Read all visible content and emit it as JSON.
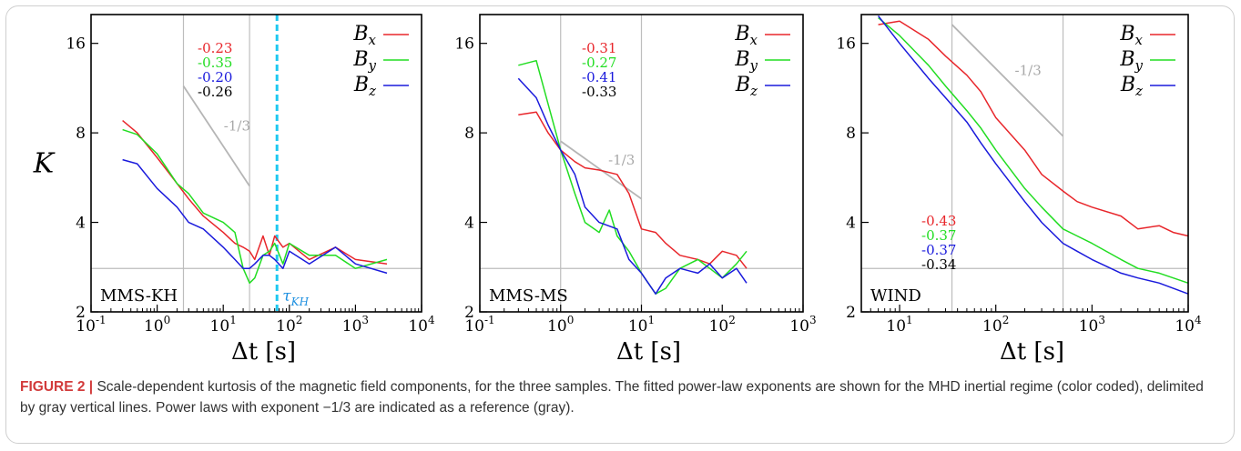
{
  "caption": {
    "label": "FIGURE 2 |",
    "text": "Scale-dependent kurtosis of the magnetic field components, for the three samples. The fitted power-law exponents are shown for the MHD inertial regime (color coded), delimited by gray vertical lines. Power laws with exponent −1/3 are indicated as a reference (gray)."
  },
  "colors": {
    "Bx": "#e8262b",
    "By": "#22dd22",
    "Bz": "#1a1adc",
    "avg": "#000000",
    "reference": "#b8b8b8",
    "tau": "#1ec8f0",
    "tau_label": "#1e90e0"
  },
  "chart_data": [
    {
      "type": "line",
      "panel": "MMS-KH",
      "sample_label": "MMS-KH",
      "xlabel": "Δt [s]",
      "ylabel": "K",
      "xscale": "log",
      "yscale": "log",
      "xlim": [
        0.1,
        10000
      ],
      "ylim": [
        2,
        20
      ],
      "xticks": [
        "10^-1",
        "10^0",
        "10^1",
        "10^2",
        "10^3",
        "10^4"
      ],
      "yticks": [
        "2",
        "4",
        "8",
        "16"
      ],
      "legend": {
        "position": "top-right",
        "entries": [
          "B_x",
          "B_y",
          "B_z"
        ]
      },
      "exponents": [
        "-0.23",
        "-0.35",
        "-0.20",
        "-0.26"
      ],
      "reference_slope": "-1/3",
      "reference_segment": [
        [
          2.5,
          11.5
        ],
        [
          25,
          5.3
        ]
      ],
      "vlines": [
        2.5,
        25
      ],
      "hline": 2.8,
      "tau_line": 65,
      "tau_label": "τ_KH",
      "series": [
        {
          "name": "B_x",
          "x": [
            0.3,
            0.5,
            1,
            2,
            3,
            5,
            10,
            15,
            20,
            25,
            30,
            40,
            50,
            60,
            80,
            100,
            200,
            500,
            1000,
            3000
          ],
          "y": [
            8.8,
            8.0,
            6.6,
            5.4,
            4.8,
            4.2,
            3.7,
            3.4,
            3.3,
            3.2,
            3.0,
            3.6,
            3.1,
            3.6,
            3.3,
            3.4,
            3.0,
            3.3,
            3.0,
            2.9
          ]
        },
        {
          "name": "B_y",
          "x": [
            0.3,
            0.5,
            1,
            2,
            3,
            5,
            10,
            15,
            20,
            25,
            30,
            40,
            50,
            60,
            80,
            100,
            200,
            500,
            1000,
            3000
          ],
          "y": [
            8.2,
            7.9,
            6.8,
            5.4,
            5.0,
            4.3,
            4.0,
            3.7,
            2.8,
            2.5,
            2.6,
            3.1,
            3.2,
            3.4,
            2.9,
            3.4,
            3.1,
            3.1,
            2.8,
            3.0
          ]
        },
        {
          "name": "B_z",
          "x": [
            0.3,
            0.5,
            1,
            2,
            3,
            5,
            10,
            15,
            20,
            25,
            30,
            40,
            50,
            60,
            80,
            100,
            200,
            500,
            1000,
            3000
          ],
          "y": [
            6.5,
            6.3,
            5.2,
            4.5,
            4.0,
            3.8,
            3.3,
            3.0,
            2.8,
            2.8,
            2.9,
            3.1,
            3.1,
            3.0,
            2.8,
            3.2,
            2.9,
            3.3,
            2.9,
            2.7
          ]
        }
      ]
    },
    {
      "type": "line",
      "panel": "MMS-MS",
      "sample_label": "MMS-MS",
      "xlabel": "Δt [s]",
      "ylabel": "",
      "xscale": "log",
      "yscale": "log",
      "xlim": [
        0.1,
        1000
      ],
      "ylim": [
        2,
        20
      ],
      "xticks": [
        "10^-1",
        "10^0",
        "10^1",
        "10^2",
        "10^3"
      ],
      "yticks": [
        "2",
        "4",
        "8",
        "16"
      ],
      "legend": {
        "position": "top-right",
        "entries": [
          "B_x",
          "B_y",
          "B_z"
        ]
      },
      "exponents": [
        "-0.31",
        "-0.27",
        "-0.41",
        "-0.33"
      ],
      "reference_slope": "-1/3",
      "reference_segment": [
        [
          1,
          7.5
        ],
        [
          10,
          4.8
        ]
      ],
      "vlines": [
        1,
        10
      ],
      "hline": 2.8,
      "series": [
        {
          "name": "B_x",
          "x": [
            0.3,
            0.5,
            0.7,
            1,
            1.5,
            2,
            3,
            5,
            7,
            10,
            15,
            20,
            30,
            50,
            70,
            100,
            150,
            200
          ],
          "y": [
            9.2,
            9.4,
            8.0,
            7.0,
            6.4,
            6.1,
            6.0,
            5.8,
            5.0,
            3.8,
            3.7,
            3.4,
            3.1,
            3.0,
            2.9,
            3.2,
            3.1,
            2.8
          ]
        },
        {
          "name": "B_y",
          "x": [
            0.3,
            0.5,
            0.7,
            1,
            1.5,
            2,
            3,
            4,
            5,
            7,
            10,
            15,
            20,
            30,
            50,
            70,
            100,
            150,
            200
          ],
          "y": [
            13.5,
            14.0,
            10.0,
            7.0,
            5.0,
            4.0,
            3.7,
            4.4,
            3.6,
            3.2,
            2.7,
            2.3,
            2.4,
            2.8,
            3.0,
            2.8,
            2.6,
            2.9,
            3.2
          ]
        },
        {
          "name": "B_z",
          "x": [
            0.3,
            0.5,
            0.7,
            1,
            1.5,
            2,
            3,
            5,
            7,
            10,
            15,
            20,
            30,
            50,
            70,
            100,
            150,
            200
          ],
          "y": [
            12.2,
            10.5,
            8.5,
            7.0,
            5.8,
            4.5,
            4.0,
            3.8,
            3.0,
            2.7,
            2.3,
            2.6,
            2.8,
            2.7,
            2.9,
            2.6,
            2.8,
            2.5
          ]
        }
      ]
    },
    {
      "type": "line",
      "panel": "WIND",
      "sample_label": "WIND",
      "xlabel": "Δt [s]",
      "ylabel": "",
      "xscale": "log",
      "yscale": "log",
      "xlim": [
        4,
        10000
      ],
      "ylim": [
        2,
        20
      ],
      "xticks": [
        "10^1",
        "10^2",
        "10^3",
        "10^4"
      ],
      "yticks": [
        "2",
        "4",
        "8",
        "16"
      ],
      "legend": {
        "position": "top-right",
        "entries": [
          "B_x",
          "B_y",
          "B_z"
        ]
      },
      "exponents": [
        "-0.43",
        "-0.37",
        "-0.37",
        "-0.34"
      ],
      "reference_slope": "-1/3",
      "reference_segment": [
        [
          35,
          18.5
        ],
        [
          500,
          7.8
        ]
      ],
      "vlines": [
        35,
        500
      ],
      "hline": 2.8,
      "series": [
        {
          "name": "B_x",
          "x": [
            6,
            10,
            20,
            30,
            50,
            70,
            100,
            200,
            300,
            500,
            700,
            1000,
            2000,
            3000,
            5000,
            7000,
            10000
          ],
          "y": [
            18.5,
            19.0,
            16.5,
            14.5,
            12.5,
            11.0,
            9.0,
            7.0,
            5.8,
            5.1,
            4.7,
            4.5,
            4.2,
            3.8,
            3.9,
            3.7,
            3.6
          ]
        },
        {
          "name": "B_y",
          "x": [
            6,
            10,
            20,
            30,
            50,
            70,
            100,
            200,
            300,
            500,
            700,
            1000,
            2000,
            3000,
            5000,
            7000,
            10000
          ],
          "y": [
            19.5,
            17.0,
            13.5,
            11.5,
            9.5,
            8.3,
            7.0,
            5.2,
            4.5,
            3.8,
            3.6,
            3.4,
            3.0,
            2.8,
            2.7,
            2.6,
            2.5
          ]
        },
        {
          "name": "B_z",
          "x": [
            6,
            10,
            20,
            30,
            50,
            70,
            100,
            200,
            300,
            500,
            700,
            1000,
            2000,
            3000,
            5000,
            7000,
            10000
          ],
          "y": [
            19.8,
            16.0,
            12.2,
            10.5,
            8.7,
            7.4,
            6.3,
            4.7,
            4.0,
            3.4,
            3.2,
            3.0,
            2.7,
            2.6,
            2.5,
            2.4,
            2.3
          ]
        }
      ]
    }
  ]
}
